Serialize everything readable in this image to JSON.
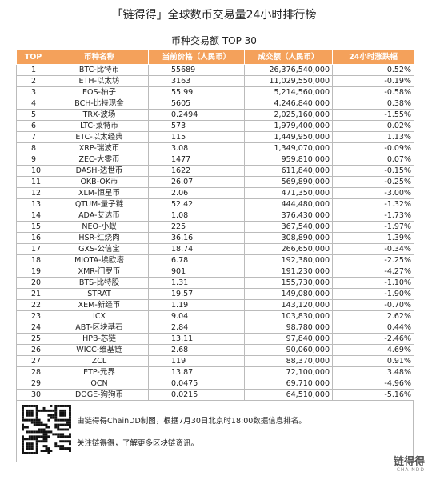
{
  "header": {
    "title": "「链得得」全球数币交易量24小时排行榜",
    "subtitle": "币种交易额 TOP 30"
  },
  "table": {
    "columns": [
      "TOP",
      "币种名称",
      "当前价格（人民币）",
      "成交额（人民币）",
      "24小时涨跌幅"
    ],
    "rows": [
      [
        "1",
        "BTC-比特币",
        "55689",
        "26,376,540,000",
        "0.52%"
      ],
      [
        "2",
        "ETH-以太坊",
        "3163",
        "11,029,550,000",
        "-0.19%"
      ],
      [
        "3",
        "EOS-柚子",
        "55.99",
        "5,214,560,000",
        "-0.58%"
      ],
      [
        "4",
        "BCH-比特现金",
        "5605",
        "4,246,840,000",
        "0.38%"
      ],
      [
        "5",
        "TRX-波场",
        "0.2494",
        "2,025,160,000",
        "-1.55%"
      ],
      [
        "6",
        "LTC-莱特币",
        "573",
        "1,979,400,000",
        "0.02%"
      ],
      [
        "7",
        "ETC-以太经典",
        "115",
        "1,449,950,000",
        "1.13%"
      ],
      [
        "8",
        "XRP-瑞波币",
        "3.08",
        "1,349,070,000",
        "-0.09%"
      ],
      [
        "9",
        "ZEC-大零币",
        "1477",
        "959,810,000",
        "0.07%"
      ],
      [
        "10",
        "DASH-达世币",
        "1622",
        "611,840,000",
        "-0.15%"
      ],
      [
        "11",
        "OKB-OK币",
        "26.07",
        "569,890,000",
        "-0.25%"
      ],
      [
        "12",
        "XLM-恒星币",
        "2.06",
        "471,350,000",
        "-3.00%"
      ],
      [
        "13",
        "QTUM-量子链",
        "52.42",
        "444,480,000",
        "-1.32%"
      ],
      [
        "14",
        "ADA-艾达币",
        "1.08",
        "376,430,000",
        "-1.73%"
      ],
      [
        "15",
        "NEO-小蚁",
        "225",
        "367,540,000",
        "-1.97%"
      ],
      [
        "16",
        "HSR-红烧肉",
        "36.16",
        "308,890,000",
        "1.39%"
      ],
      [
        "17",
        "GXS-公信宝",
        "18.74",
        "266,650,000",
        "-0.34%"
      ],
      [
        "18",
        "MIOTA-埃欧塔",
        "6.78",
        "192,380,000",
        "-2.25%"
      ],
      [
        "19",
        "XMR-门罗币",
        "901",
        "191,230,000",
        "-4.27%"
      ],
      [
        "20",
        "BTS-比特股",
        "1.31",
        "155,730,000",
        "-1.10%"
      ],
      [
        "21",
        "STRAT",
        "19.57",
        "149,080,000",
        "-1.90%"
      ],
      [
        "22",
        "XEM-新经币",
        "1.19",
        "143,120,000",
        "-0.70%"
      ],
      [
        "23",
        "ICX",
        "9.04",
        "103,830,000",
        "2.62%"
      ],
      [
        "24",
        "ABT-区块基石",
        "2.84",
        "98,780,000",
        "0.44%"
      ],
      [
        "25",
        "HPB-芯链",
        "13.11",
        "97,840,000",
        "-2.46%"
      ],
      [
        "26",
        "WICC-维基链",
        "2.68",
        "90,060,000",
        "4.69%"
      ],
      [
        "27",
        "ZCL",
        "119",
        "88,370,000",
        "0.91%"
      ],
      [
        "28",
        "ETP-元界",
        "13.87",
        "72,100,000",
        "3.48%"
      ],
      [
        "29",
        "OCN",
        "0.0475",
        "69,710,000",
        "-4.96%"
      ],
      [
        "30",
        "DOGE-狗狗币",
        "0.0215",
        "64,510,000",
        "-5.16%"
      ]
    ]
  },
  "footer": {
    "note1": "由链得得ChainDD制图，根据7月30日北京时18:00数据信息排名。",
    "note2": "关注链得得，了解更多区块链资讯。",
    "logo": "链得得",
    "logo_sub": "CHAINDD"
  }
}
